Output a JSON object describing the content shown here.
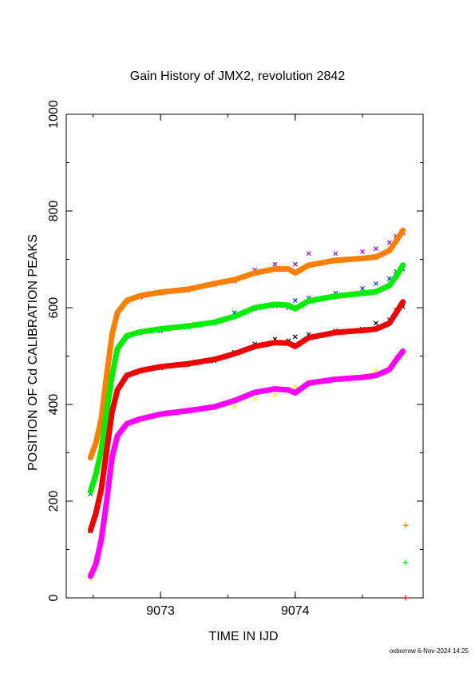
{
  "chart_data": {
    "type": "scatter",
    "title": "Gain History of JMX2, revolution 2842",
    "xlabel": "TIME IN IJD",
    "ylabel": "POSITION OF Cd CALIBRATION PEAKS",
    "xlim": [
      9072.3,
      9074.95
    ],
    "ylim": [
      0,
      1000
    ],
    "xticks": [
      {
        "value": 9073,
        "label": "9073"
      },
      {
        "value": 9074,
        "label": "9074"
      }
    ],
    "yticks": [
      {
        "value": 0,
        "label": "0"
      },
      {
        "value": 200,
        "label": "200"
      },
      {
        "value": 400,
        "label": "400"
      },
      {
        "value": 600,
        "label": "600"
      },
      {
        "value": 800,
        "label": "800"
      },
      {
        "value": 1000,
        "label": "1000"
      }
    ],
    "grid": false,
    "x_sample": [
      9072.48,
      9072.52,
      9072.56,
      9072.6,
      9072.64,
      9072.68,
      9072.75,
      9072.85,
      9073.0,
      9073.2,
      9073.4,
      9073.55,
      9073.7,
      9073.85,
      9073.95,
      9074.0,
      9074.1,
      9074.3,
      9074.5,
      9074.6,
      9074.7,
      9074.75,
      9074.8
    ],
    "series": [
      {
        "color": "#ff8000",
        "role": "fit",
        "values": [
          290,
          320,
          370,
          460,
          545,
          590,
          615,
          625,
          632,
          638,
          650,
          658,
          672,
          680,
          680,
          672,
          688,
          698,
          702,
          705,
          718,
          738,
          760
        ]
      },
      {
        "color": "#00ee00",
        "role": "fit",
        "values": [
          220,
          255,
          305,
          385,
          460,
          515,
          542,
          550,
          556,
          562,
          570,
          582,
          600,
          607,
          605,
          598,
          614,
          624,
          630,
          633,
          646,
          665,
          688
        ]
      },
      {
        "color": "#ee0000",
        "role": "fit",
        "values": [
          140,
          175,
          225,
          305,
          385,
          430,
          460,
          470,
          478,
          484,
          493,
          505,
          520,
          528,
          527,
          520,
          538,
          549,
          553,
          556,
          568,
          590,
          612
        ]
      },
      {
        "color": "#ff00ff",
        "role": "fit",
        "values": [
          45,
          70,
          120,
          200,
          290,
          335,
          360,
          370,
          380,
          387,
          395,
          408,
          425,
          432,
          430,
          424,
          444,
          452,
          456,
          460,
          472,
          492,
          510
        ]
      },
      {
        "color": "#9900cc",
        "role": "points",
        "values": [
          290,
          322,
          372,
          462,
          548,
          588,
          612,
          622,
          630,
          636,
          648,
          655,
          678,
          690,
          680,
          690,
          712,
          712,
          716,
          722,
          735,
          748,
          755
        ]
      },
      {
        "color": "#0033ff",
        "role": "points",
        "values": [
          215,
          252,
          300,
          385,
          462,
          512,
          540,
          548,
          552,
          560,
          568,
          590,
          598,
          604,
          600,
          615,
          620,
          630,
          640,
          650,
          660,
          675,
          680
        ]
      },
      {
        "color": "#000000",
        "role": "points",
        "values": [
          138,
          172,
          222,
          302,
          382,
          428,
          460,
          468,
          475,
          482,
          490,
          508,
          525,
          535,
          532,
          540,
          545,
          552,
          556,
          568,
          575,
          595,
          602
        ]
      },
      {
        "color": "#ffee00",
        "role": "points",
        "values": [
          40,
          68,
          118,
          198,
          288,
          332,
          362,
          372,
          378,
          385,
          392,
          395,
          412,
          420,
          428,
          436,
          440,
          450,
          460,
          470,
          480,
          500,
          505
        ]
      }
    ],
    "markers": [
      {
        "x": 9074.82,
        "y": 150,
        "color": "#ff8000"
      },
      {
        "x": 9074.82,
        "y": 73,
        "color": "#00ee00"
      },
      {
        "x": 9074.82,
        "y": 0,
        "color": "#ee0000"
      }
    ],
    "footer": "oxborrow  6-Nov-2024 14:25"
  }
}
